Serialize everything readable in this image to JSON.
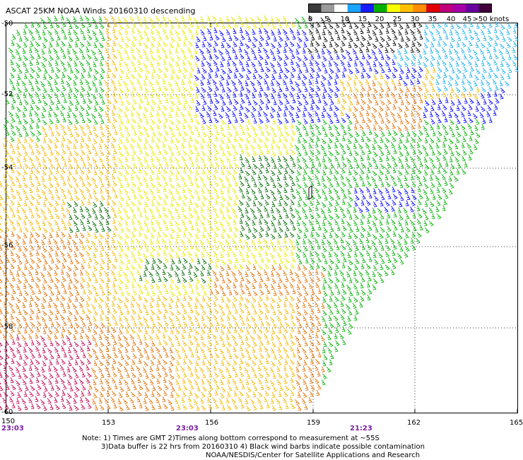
{
  "title": "ASCAT 25KM NOAA Winds 20160310 descending",
  "colorbar": {
    "colors": [
      "#3a3a3a",
      "#9a9a9a",
      "#ffffff",
      "#1aa3ff",
      "#1a1aff",
      "#00b000",
      "#ffff00",
      "#ffc000",
      "#ff8c00",
      "#e00000",
      "#c0007a",
      "#a800a8",
      "#6a00a0",
      "#40003a"
    ],
    "labels": [
      "0",
      "5",
      "10",
      "15",
      "20",
      "25",
      "30",
      "35",
      "40",
      "45",
      ">50 knots"
    ]
  },
  "map": {
    "lat_labels": [
      "-50",
      "-52",
      "-54",
      "-56",
      "-58",
      "-60"
    ],
    "lon_labels": [
      "150",
      "153",
      "156",
      "159",
      "162",
      "165"
    ],
    "time_labels": [
      "23:03",
      "23:03",
      "21:23"
    ]
  },
  "notes": {
    "line1": "Note: 1) Times are GMT 2)Times along bottom correspond to measurement at ~55S",
    "line2": "3)Data buffer is 22 hrs from 20160310 4) Black wind barbs indicate possible contamination",
    "line3": "NOAA/NESDIS/Center for Satellite Applications and Research"
  },
  "barb_colors": {
    "black": "#000000",
    "cyan": "#18b0e8",
    "blue": "#0000ff",
    "green": "#00b000",
    "darkgreen": "#006a00",
    "yellow": "#e8e800",
    "gold": "#f0b800",
    "orange": "#e07000",
    "red": "#d01818",
    "crimson": "#c0004a"
  }
}
